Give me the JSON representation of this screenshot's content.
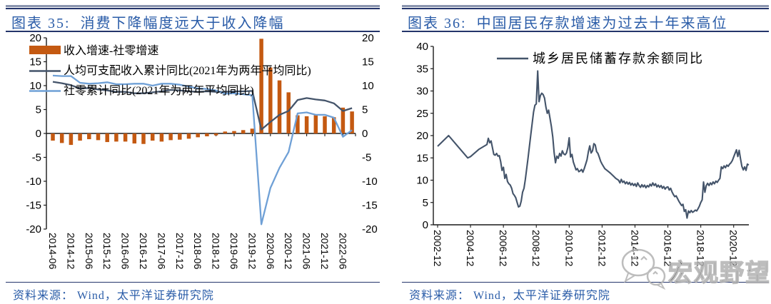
{
  "colors": {
    "accent_blue_text": "#2A5CA8",
    "rule_navy": "#24356B",
    "rule_gray": "#8A94AE",
    "bar_orange": "#C45911",
    "line_dark_slate": "#44546A",
    "line_light_blue": "#6FA0D6",
    "axis_black": "#1a1a1a",
    "watermark_gray": "#b2b2b2"
  },
  "left_panel": {
    "title_prefix": "图表 35:",
    "title": "消费下降幅度远大于收入降幅",
    "source": "资料来源： Wind，太平洋证券研究院"
  },
  "right_panel": {
    "title_prefix": "图表 36:",
    "title": "中国居民存款增速为过去十年来高位",
    "source": "资料来源： Wind，太平洋证券研究院"
  },
  "watermark": {
    "icon": "wechat-chat-bubbles-icon",
    "text": "宏观野望"
  },
  "chart_data": [
    {
      "type": "bar",
      "subtype": "bar-plus-lines",
      "title": "消费下降幅度远大于收入降幅",
      "ylim": [
        -20,
        20
      ],
      "y_ticks": [
        20,
        15,
        10,
        5,
        0,
        -5,
        -10,
        -15,
        -20
      ],
      "y_axis_sides": "both",
      "grid": false,
      "legend_position": "top-left",
      "categories": [
        "2014-06",
        "2014-09",
        "2014-12",
        "2015-03",
        "2015-06",
        "2015-09",
        "2015-12",
        "2016-03",
        "2016-06",
        "2016-09",
        "2016-12",
        "2017-03",
        "2017-06",
        "2017-09",
        "2017-12",
        "2018-03",
        "2018-06",
        "2018-09",
        "2018-12",
        "2019-03",
        "2019-06",
        "2019-09",
        "2019-12",
        "2020-03",
        "2020-06",
        "2020-09",
        "2020-12",
        "2021-03",
        "2021-06",
        "2021-09",
        "2021-12",
        "2022-03",
        "2022-06",
        "2022-09"
      ],
      "x_tick_labels": [
        "2014-06",
        "2014-12",
        "2015-06",
        "2015-12",
        "2016-06",
        "2016-12",
        "2017-06",
        "2017-12",
        "2018-06",
        "2018-12",
        "2019-06",
        "2019-12",
        "2020-06",
        "2020-12",
        "2021-06",
        "2021-12",
        "2022-06"
      ],
      "series": [
        {
          "name": "收入增速-社零增速",
          "type": "bar",
          "color": "#C45911",
          "values": [
            -1.5,
            -2.0,
            -2.4,
            -1.5,
            -1.2,
            -1.4,
            -1.8,
            -1.7,
            -1.7,
            -2.1,
            -2.2,
            -1.5,
            -1.7,
            -1.4,
            -1.3,
            -1.1,
            -0.8,
            -0.6,
            -0.4,
            0.4,
            0.5,
            0.7,
            1.0,
            19.8,
            13.8,
            11.1,
            8.6,
            3.8,
            3.6,
            3.8,
            3.6,
            3.4,
            5.4,
            4.6
          ]
        },
        {
          "name": "人均可支配收入累计同比(2021年为两年平均同比)",
          "type": "line",
          "color": "#44546A",
          "values": [
            10.8,
            10.5,
            10.1,
            9.4,
            9.5,
            9.2,
            9.0,
            8.7,
            8.7,
            8.4,
            8.4,
            8.6,
            8.8,
            9.1,
            9.0,
            8.8,
            8.7,
            8.8,
            8.7,
            8.7,
            8.8,
            8.8,
            8.9,
            0.8,
            2.4,
            3.9,
            4.7,
            7.0,
            7.4,
            7.1,
            6.9,
            6.3,
            4.7,
            5.3
          ]
        },
        {
          "name": "社零累计同比(2021年为两年平均同比)",
          "type": "line",
          "color": "#6FA0D6",
          "values": [
            12.1,
            12.0,
            12.0,
            10.6,
            10.4,
            10.5,
            10.7,
            10.3,
            10.3,
            10.4,
            10.4,
            10.0,
            10.4,
            10.4,
            10.2,
            9.8,
            9.4,
            9.3,
            9.0,
            8.3,
            8.4,
            8.2,
            8.0,
            -19.0,
            -11.4,
            -7.2,
            -3.9,
            4.2,
            4.4,
            3.9,
            3.9,
            3.3,
            -0.7,
            0.7
          ]
        }
      ]
    },
    {
      "type": "line",
      "title": "中国居民存款增速为过去十年来高位",
      "ylim": [
        0,
        40
      ],
      "y_ticks": [
        40,
        35,
        30,
        25,
        20,
        15,
        10,
        5,
        0
      ],
      "grid": false,
      "legend_position": "top-center",
      "x_start": "2002-12",
      "x_unit": "months-since-2002-12",
      "x_tick_every_months": 24,
      "x_tick_labels": [
        "2002-12",
        "2004-12",
        "2006-12",
        "2008-12",
        "2010-12",
        "2012-12",
        "2014-12",
        "2016-12",
        "2018-12",
        "2020-12"
      ],
      "series": [
        {
          "name": "城乡居民储蓄存款余额同比",
          "type": "line",
          "color": "#44546A",
          "points": [
            [
              0,
              17.6
            ],
            [
              8,
              20.0
            ],
            [
              22,
              15.0
            ],
            [
              24,
              15.3
            ],
            [
              30,
              16.9
            ],
            [
              36,
              18.0
            ],
            [
              37,
              19.4
            ],
            [
              38,
              18.4
            ],
            [
              39,
              18.8
            ],
            [
              40,
              17.3
            ],
            [
              41,
              15.8
            ],
            [
              42,
              15.6
            ],
            [
              43,
              16.0
            ],
            [
              44,
              15.4
            ],
            [
              45,
              15.5
            ],
            [
              46,
              14.2
            ],
            [
              47,
              12.2
            ],
            [
              48,
              12.9
            ],
            [
              49,
              10.4
            ],
            [
              50,
              11.3
            ],
            [
              51,
              9.7
            ],
            [
              52,
              9.2
            ],
            [
              53,
              8.9
            ],
            [
              54,
              8.2
            ],
            [
              55,
              7.0
            ],
            [
              56,
              6.6
            ],
            [
              57,
              6.1
            ],
            [
              58,
              5.0
            ],
            [
              59,
              4.0
            ],
            [
              60,
              4.2
            ],
            [
              61,
              5.3
            ],
            [
              62,
              7.3
            ],
            [
              63,
              8.2
            ],
            [
              64,
              10.2
            ],
            [
              65,
              12.6
            ],
            [
              66,
              15.0
            ],
            [
              67,
              17.6
            ],
            [
              68,
              20.3
            ],
            [
              69,
              22.8
            ],
            [
              70,
              25.3
            ],
            [
              71,
              26.8
            ],
            [
              72,
              27.1
            ],
            [
              73,
              34.5
            ],
            [
              74,
              27.6
            ],
            [
              75,
              29.0
            ],
            [
              76,
              29.5
            ],
            [
              77,
              29.2
            ],
            [
              78,
              28.4
            ],
            [
              79,
              26.4
            ],
            [
              80,
              25.0
            ],
            [
              81,
              25.7
            ],
            [
              82,
              23.9
            ],
            [
              83,
              22.0
            ],
            [
              84,
              19.7
            ],
            [
              85,
              16.2
            ],
            [
              86,
              13.9
            ],
            [
              87,
              15.4
            ],
            [
              88,
              14.9
            ],
            [
              89,
              16.0
            ],
            [
              90,
              15.4
            ],
            [
              91,
              16.6
            ],
            [
              92,
              15.9
            ],
            [
              93,
              15.7
            ],
            [
              94,
              16.1
            ],
            [
              95,
              17.3
            ],
            [
              96,
              19.5
            ],
            [
              97,
              15.2
            ],
            [
              98,
              15.8
            ],
            [
              99,
              14.1
            ],
            [
              100,
              13.2
            ],
            [
              101,
              12.3
            ],
            [
              102,
              12.6
            ],
            [
              103,
              11.9
            ],
            [
              104,
              12.1
            ],
            [
              105,
              12.4
            ],
            [
              106,
              11.8
            ],
            [
              107,
              12.6
            ],
            [
              108,
              13.6
            ],
            [
              109,
              14.6
            ],
            [
              110,
              16.4
            ],
            [
              111,
              17.7
            ],
            [
              112,
              16.1
            ],
            [
              113,
              16.6
            ],
            [
              114,
              18.2
            ],
            [
              115,
              17.9
            ],
            [
              116,
              16.4
            ],
            [
              117,
              16.0
            ],
            [
              118,
              15.1
            ],
            [
              119,
              14.2
            ],
            [
              120,
              13.6
            ],
            [
              122,
              12.6
            ],
            [
              124,
              12.1
            ],
            [
              126,
              11.6
            ],
            [
              128,
              11.0
            ],
            [
              130,
              10.4
            ],
            [
              132,
              10.0
            ],
            [
              133,
              9.4
            ],
            [
              134,
              10.2
            ],
            [
              135,
              9.5
            ],
            [
              136,
              9.8
            ],
            [
              137,
              9.2
            ],
            [
              138,
              9.6
            ],
            [
              139,
              9.1
            ],
            [
              140,
              9.5
            ],
            [
              141,
              8.9
            ],
            [
              142,
              9.3
            ],
            [
              143,
              8.8
            ],
            [
              144,
              9.2
            ],
            [
              145,
              8.6
            ],
            [
              146,
              9.4
            ],
            [
              147,
              8.8
            ],
            [
              148,
              8.4
            ],
            [
              149,
              9.0
            ],
            [
              150,
              8.5
            ],
            [
              151,
              8.9
            ],
            [
              152,
              8.3
            ],
            [
              153,
              8.8
            ],
            [
              154,
              8.5
            ],
            [
              155,
              9.1
            ],
            [
              156,
              8.7
            ],
            [
              157,
              9.4
            ],
            [
              158,
              8.8
            ],
            [
              159,
              9.2
            ],
            [
              160,
              8.5
            ],
            [
              161,
              8.9
            ],
            [
              162,
              8.4
            ],
            [
              163,
              8.8
            ],
            [
              164,
              8.2
            ],
            [
              165,
              8.6
            ],
            [
              166,
              8.0
            ],
            [
              167,
              8.4
            ],
            [
              168,
              8.5
            ],
            [
              169,
              7.8
            ],
            [
              170,
              8.2
            ],
            [
              171,
              7.4
            ],
            [
              172,
              6.8
            ],
            [
              173,
              6.3
            ],
            [
              174,
              6.5
            ],
            [
              175,
              5.9
            ],
            [
              176,
              5.3
            ],
            [
              177,
              4.8
            ],
            [
              178,
              4.3
            ],
            [
              179,
              4.6
            ],
            [
              180,
              3.0
            ],
            [
              181,
              3.4
            ],
            [
              182,
              1.5
            ],
            [
              183,
              3.1
            ],
            [
              184,
              2.7
            ],
            [
              185,
              3.2
            ],
            [
              186,
              2.8
            ],
            [
              187,
              3.0
            ],
            [
              188,
              3.3
            ],
            [
              189,
              3.1
            ],
            [
              190,
              3.6
            ],
            [
              191,
              4.2
            ],
            [
              192,
              5.0
            ],
            [
              193,
              5.6
            ],
            [
              194,
              9.6
            ],
            [
              195,
              7.3
            ],
            [
              196,
              8.8
            ],
            [
              197,
              9.3
            ],
            [
              198,
              8.8
            ],
            [
              199,
              9.4
            ],
            [
              200,
              9.0
            ],
            [
              201,
              9.6
            ],
            [
              202,
              9.2
            ],
            [
              203,
              9.8
            ],
            [
              204,
              9.5
            ],
            [
              205,
              10.0
            ],
            [
              206,
              10.4
            ],
            [
              207,
              13.0
            ],
            [
              208,
              12.6
            ],
            [
              209,
              13.2
            ],
            [
              210,
              12.8
            ],
            [
              211,
              13.4
            ],
            [
              212,
              13.1
            ],
            [
              213,
              13.6
            ],
            [
              214,
              13.9
            ],
            [
              215,
              14.4
            ],
            [
              216,
              15.2
            ],
            [
              217,
              16.0
            ],
            [
              218,
              16.8
            ],
            [
              219,
              15.3
            ],
            [
              220,
              16.7
            ],
            [
              221,
              14.8
            ],
            [
              222,
              13.1
            ],
            [
              223,
              12.3
            ],
            [
              224,
              13.0
            ],
            [
              225,
              12.2
            ],
            [
              226,
              13.6
            ],
            [
              227,
              13.4
            ]
          ]
        }
      ]
    }
  ]
}
